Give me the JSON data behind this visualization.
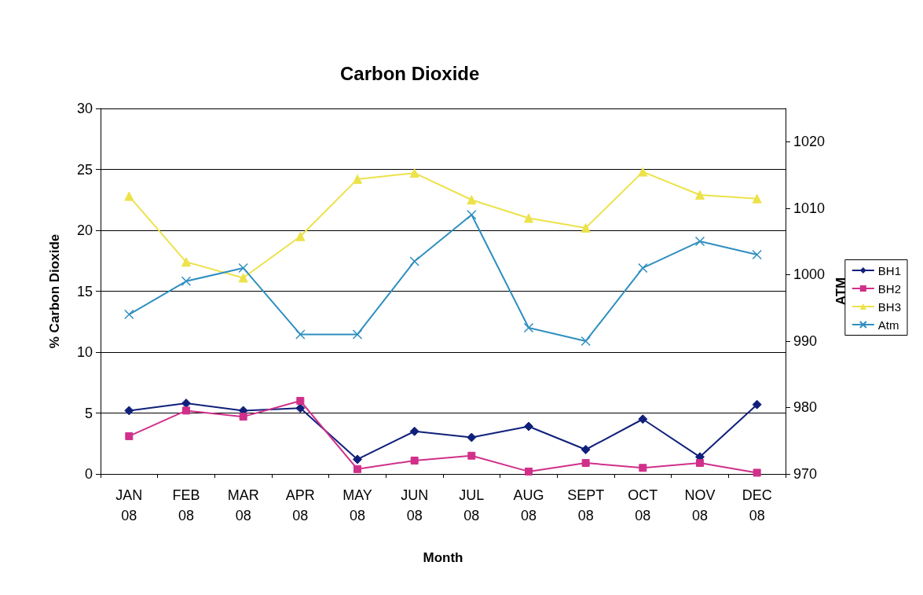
{
  "chart_data": {
    "type": "line",
    "title": "Carbon Dioxide",
    "xlabel": "Month",
    "ylabel": "% Carbon Dioxide",
    "y2label": "ATM",
    "categories": [
      "JAN\n08",
      "FEB\n08",
      "MAR\n08",
      "APR\n08",
      "MAY\n08",
      "JUN\n08",
      "JUL\n08",
      "AUG\n08",
      "SEPT\n08",
      "OCT\n08",
      "NOV\n08",
      "DEC\n08"
    ],
    "series": [
      {
        "name": "BH1",
        "color": "#10207a",
        "marker": "diamond",
        "values": [
          5.2,
          5.8,
          5.2,
          5.4,
          1.2,
          3.5,
          3.0,
          3.9,
          2.0,
          4.5,
          1.4,
          5.7
        ]
      },
      {
        "name": "BH2",
        "color": "#d0308a",
        "marker": "square",
        "values": [
          3.1,
          5.2,
          4.7,
          6.0,
          0.4,
          1.1,
          1.5,
          0.2,
          0.9,
          0.5,
          0.9,
          0.1
        ]
      },
      {
        "name": "BH3",
        "color": "#ece24a",
        "marker": "triangle",
        "values": [
          22.8,
          17.4,
          16.1,
          19.5,
          24.2,
          24.7,
          22.5,
          21.0,
          20.2,
          24.8,
          22.9,
          22.6
        ]
      },
      {
        "name": "Atm",
        "color": "#2f8fc0",
        "marker": "cross",
        "axis": "y2",
        "values": [
          994,
          999,
          1001,
          991,
          991,
          1002,
          1009,
          992,
          990,
          1001,
          1005,
          1003
        ]
      }
    ],
    "ylim": [
      0,
      30
    ],
    "yticks": [
      0,
      5,
      10,
      15,
      20,
      25,
      30
    ],
    "y2lim": [
      970,
      1025
    ],
    "y2ticks": [
      970,
      980,
      990,
      1000,
      1010,
      1020
    ],
    "grid": "y",
    "legend": "right",
    "line_style": "solid"
  }
}
